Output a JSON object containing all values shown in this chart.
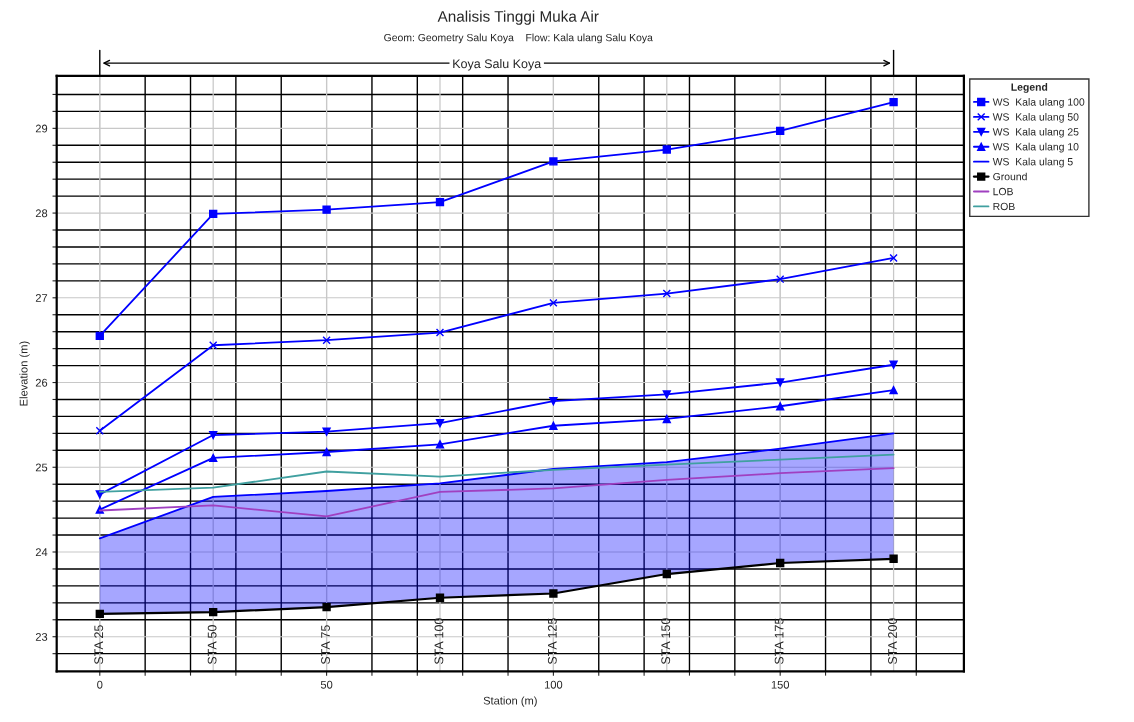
{
  "chart_data": {
    "type": "line",
    "title": "Analisis Tinggi Muka Air",
    "subtitle": "Geom: Geometry Salu Koya    Flow: Kala ulang Salu Koya",
    "xlabel": "Station (m)",
    "ylabel": "Elevation (m)",
    "legend_title": "Legend",
    "x": [
      0,
      25,
      50,
      75,
      100,
      125,
      150,
      175
    ],
    "series": [
      {
        "name": "WS  Kala ulang 100",
        "color": "#0000ff",
        "marker": "square",
        "values": [
          26.55,
          27.99,
          28.04,
          28.13,
          28.61,
          28.75,
          28.97,
          29.31
        ]
      },
      {
        "name": "WS  Kala ulang 50",
        "color": "#0000ff",
        "marker": "cross",
        "values": [
          25.43,
          26.44,
          26.5,
          26.59,
          26.94,
          27.05,
          27.22,
          27.47
        ]
      },
      {
        "name": "WS  Kala ulang 25",
        "color": "#0000ff",
        "marker": "triangle_down",
        "values": [
          24.68,
          25.38,
          25.42,
          25.52,
          25.78,
          25.86,
          26.0,
          26.21
        ]
      },
      {
        "name": "WS  Kala ulang 10",
        "color": "#0000ff",
        "marker": "triangle",
        "values": [
          24.5,
          25.11,
          25.18,
          25.27,
          25.49,
          25.57,
          25.72,
          25.91
        ]
      },
      {
        "name": "WS  Kala ulang 5",
        "color": "#0000ff",
        "marker": "none",
        "values": [
          24.16,
          24.65,
          24.72,
          24.81,
          24.98,
          25.06,
          25.22,
          25.4
        ],
        "lower": [
          23.27,
          23.29,
          23.35,
          23.46,
          23.51,
          23.74,
          23.87,
          23.92
        ],
        "upper": [
          24.16,
          24.65,
          24.72,
          24.81,
          24.98,
          25.06,
          25.22,
          25.4
        ]
      },
      {
        "name": "Ground",
        "color": "#000000",
        "marker": "square",
        "values": [
          23.27,
          23.29,
          23.35,
          23.46,
          23.51,
          23.74,
          23.87,
          23.92
        ]
      },
      {
        "name": "LOB",
        "color": "#a040c0",
        "marker": "none",
        "values": [
          24.49,
          24.55,
          24.42,
          24.71,
          24.75,
          24.85,
          24.93,
          24.99
        ]
      },
      {
        "name": "ROB",
        "color": "#40a0a0",
        "marker": "none",
        "values": [
          24.71,
          24.76,
          24.95,
          24.89,
          24.97,
          25.03,
          25.09,
          25.15
        ]
      }
    ],
    "xlim": [
      -9.5,
      190.5
    ],
    "ylim": [
      22.59,
      29.62
    ],
    "xticks": [
      0,
      {
        "value": 10,
        "label": null
      },
      {
        "value": 20,
        "label": null
      },
      {
        "value": 30,
        "label": null
      },
      {
        "value": 40,
        "label": null
      },
      50,
      {
        "value": 60,
        "label": null
      },
      {
        "value": 70,
        "label": null
      },
      {
        "value": 80,
        "label": null
      },
      {
        "value": 90,
        "label": null
      },
      100,
      {
        "value": 110,
        "label": null
      },
      {
        "value": 120,
        "label": null
      },
      {
        "value": 130,
        "label": null
      },
      {
        "value": 140,
        "label": null
      },
      150,
      {
        "value": 160,
        "label": null
      },
      {
        "value": 170,
        "label": null
      },
      {
        "value": 180,
        "label": null
      }
    ],
    "yticks": [
      {
        "value": 22.8,
        "label": null
      },
      23,
      {
        "value": 23.2,
        "label": null
      },
      {
        "value": 23.4,
        "label": null
      },
      {
        "value": 23.6,
        "label": null
      },
      {
        "value": 23.8,
        "label": null
      },
      24,
      {
        "value": 24.2,
        "label": null
      },
      {
        "value": 24.4,
        "label": null
      },
      {
        "value": 24.6,
        "label": null
      },
      {
        "value": 24.8,
        "label": null
      },
      25,
      {
        "value": 25.2,
        "label": null
      },
      {
        "value": 25.4,
        "label": null
      },
      {
        "value": 25.6,
        "label": null
      },
      {
        "value": 25.8,
        "label": null
      },
      26,
      {
        "value": 26.2,
        "label": null
      },
      {
        "value": 26.4,
        "label": null
      },
      {
        "value": 26.6,
        "label": null
      },
      {
        "value": 26.8,
        "label": null
      },
      27,
      {
        "value": 27.2,
        "label": null
      },
      {
        "value": 27.4,
        "label": null
      },
      {
        "value": 27.6,
        "label": null
      },
      {
        "value": 27.8,
        "label": null
      },
      28,
      {
        "value": 28.2,
        "label": null
      },
      {
        "value": 28.4,
        "label": null
      },
      {
        "value": 28.6,
        "label": null
      },
      {
        "value": 28.8,
        "label": null
      },
      29,
      {
        "value": 29.2,
        "label": null
      },
      {
        "value": 29.4,
        "label": null
      }
    ],
    "grid": true,
    "legend": "right",
    "line_style": "solid",
    "annotations": [
      "STA 25",
      "STA 50",
      "STA 75",
      "STA 100",
      "STA 125",
      "STA 150",
      "STA 175",
      "STA 200",
      "Koya Salu Koya"
    ]
  }
}
